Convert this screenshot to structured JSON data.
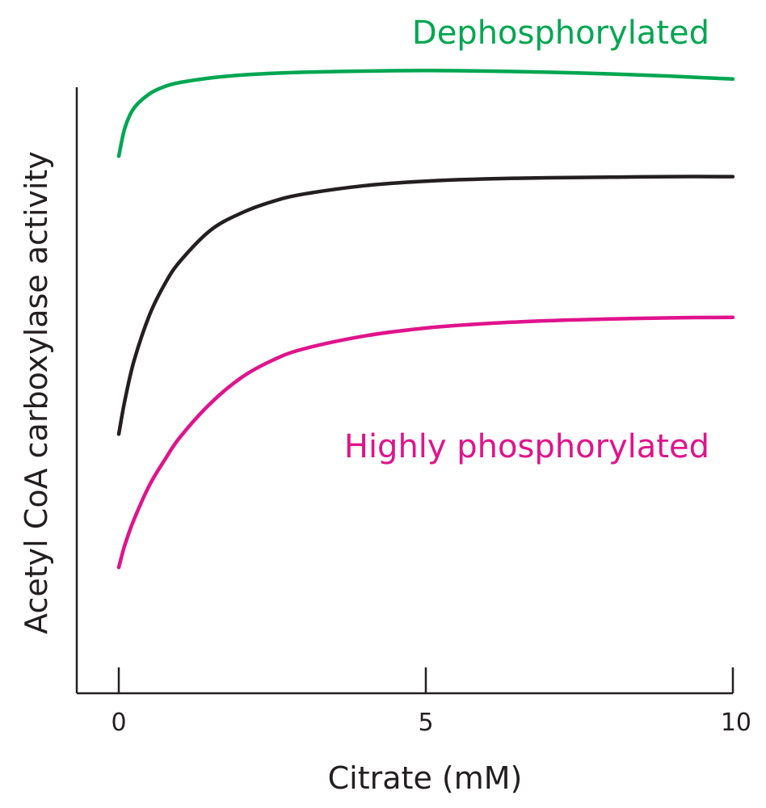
{
  "chart_data": {
    "type": "line",
    "title": "",
    "xlabel": "Citrate (mM)",
    "ylabel": "Acetyl CoA carboxylase activity",
    "xlim": [
      0,
      10
    ],
    "ylim": [
      0,
      1
    ],
    "x_ticks": [
      0,
      5,
      10
    ],
    "x_tick_labels": [
      "0",
      "5",
      "10"
    ],
    "y_ticks": [],
    "grid": false,
    "x": [
      0,
      0.1,
      0.25,
      0.5,
      0.75,
      1,
      1.5,
      2,
      2.5,
      3,
      4,
      5,
      6,
      7,
      8,
      9,
      10
    ],
    "series": [
      {
        "name": "Dephosphorylated",
        "color": "#00a651",
        "values": [
          0.85,
          0.9,
          0.935,
          0.96,
          0.973,
          0.98,
          0.988,
          0.993,
          0.996,
          0.998,
          1.0,
          1.001,
          1.0,
          0.998,
          0.995,
          0.991,
          0.986
        ]
      },
      {
        "name": "",
        "color": "#231f20",
        "values": [
          0.36,
          0.42,
          0.49,
          0.57,
          0.625,
          0.665,
          0.72,
          0.75,
          0.77,
          0.783,
          0.798,
          0.806,
          0.81,
          0.812,
          0.813,
          0.814,
          0.814
        ]
      },
      {
        "name": "Highly phosphorylated",
        "color": "#e0138c",
        "values": [
          0.125,
          0.165,
          0.21,
          0.27,
          0.315,
          0.355,
          0.415,
          0.46,
          0.49,
          0.51,
          0.533,
          0.547,
          0.555,
          0.56,
          0.563,
          0.565,
          0.566
        ]
      }
    ]
  }
}
